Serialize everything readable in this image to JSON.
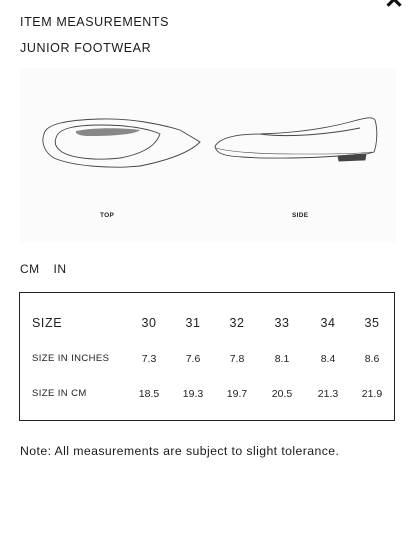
{
  "header": {
    "title": "ITEM MEASUREMENTS",
    "subtitle": "JUNIOR FOOTWEAR",
    "close_icon": "close-icon"
  },
  "illustration": {
    "top_label": "TOP",
    "side_label": "SIDE"
  },
  "units": {
    "options": [
      "CM",
      "IN"
    ]
  },
  "table": {
    "row_labels": [
      "SIZE",
      "SIZE IN INCHES",
      "SIZE IN CM"
    ],
    "sizes": [
      "30",
      "31",
      "32",
      "33",
      "34",
      "35"
    ],
    "inches": [
      "7.3",
      "7.6",
      "7.8",
      "8.1",
      "8.4",
      "8.6"
    ],
    "cm": [
      "18.5",
      "19.3",
      "19.7",
      "20.5",
      "21.3",
      "21.9"
    ]
  },
  "note": "Note: All measurements are subject to slight tolerance."
}
